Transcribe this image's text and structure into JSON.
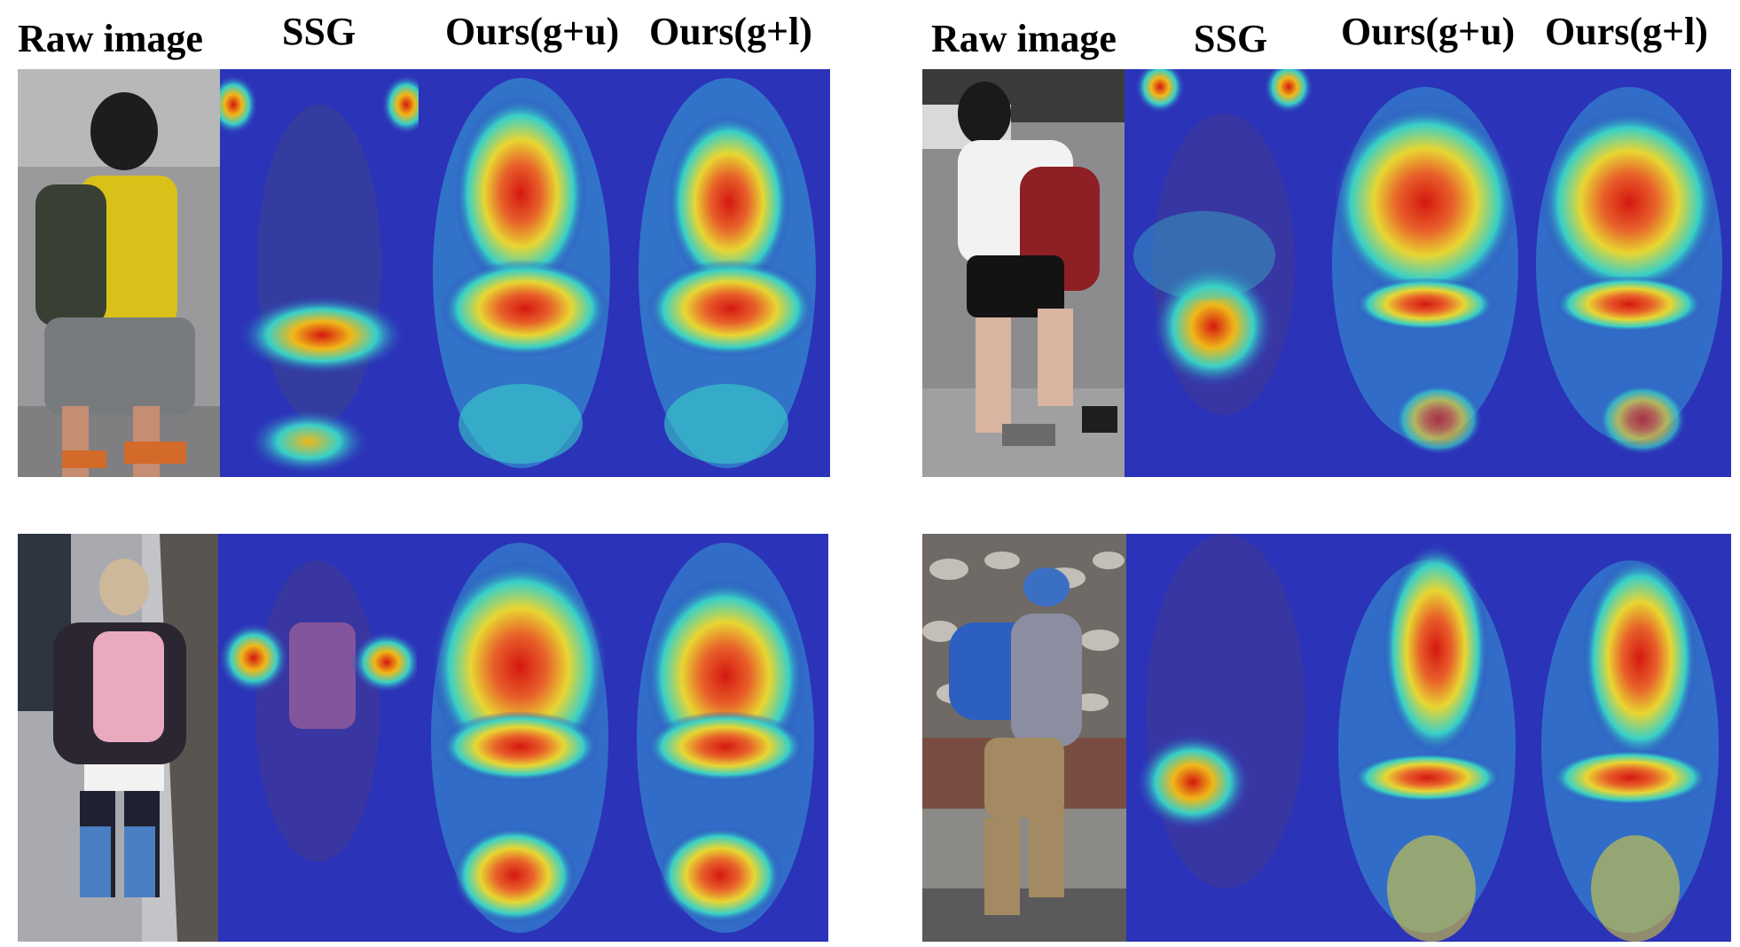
{
  "headers": {
    "left": [
      "Raw image",
      "SSG",
      "Ours(g+u)",
      "Ours(g+l)"
    ],
    "right": [
      "Raw image",
      "SSG",
      "Ours(g+u)",
      "Ours(g+l)"
    ]
  },
  "colors": {
    "heatmap_low": "#2b33b8",
    "heatmap_mid": "#38d0c8",
    "heatmap_high": "#d41810",
    "background": "#ffffff"
  },
  "panels": {
    "raw": "photo of pedestrian (raw image)",
    "ssg": "heatmap overlay (SSG)",
    "ours_gu": "heatmap overlay (Ours g+u)",
    "ours_gl": "heatmap overlay (Ours g+l)"
  }
}
